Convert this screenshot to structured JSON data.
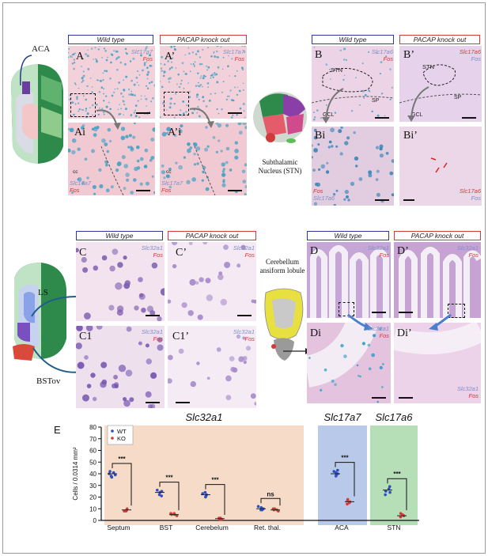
{
  "figure": {
    "top": {
      "wt_header": "Wild type",
      "ko_header": "PACAP knock out",
      "region_aca": "ACA",
      "panels": [
        {
          "label": "A",
          "gene1": "Slc17a7",
          "gene2": "Fos"
        },
        {
          "label": "A’",
          "gene1": "Slc17a7",
          "gene2": "Fos"
        },
        {
          "label": "Ai",
          "gene1": "Slc17a7",
          "gene2": "Fos",
          "tag": "cc"
        },
        {
          "label": "A’i",
          "gene1": "Slc17a7",
          "gene2": "Fos",
          "tag": "cc"
        }
      ],
      "wt_header_b": "Wild type",
      "ko_header_b": "PACAP knock out",
      "stn_caption": "Subthalamic Nucleus (STN)",
      "panels_b": [
        {
          "label": "B",
          "gene1": "Slc17a6",
          "gene2": "Fos",
          "tags": [
            "STN",
            "GCL",
            "SP"
          ]
        },
        {
          "label": "B’",
          "gene1": "Slc17a6",
          "gene2": "Fos",
          "tags": [
            "STN",
            "GCL",
            "SP"
          ]
        },
        {
          "label": "Bi",
          "gene1": "Fos",
          "gene2": "Slc17a6"
        },
        {
          "label": "Bi’",
          "gene1": "Slc17a6",
          "gene2": "Fos"
        }
      ]
    },
    "middle": {
      "wt_header": "Wild type",
      "ko_header": "PACAP knock out",
      "region_ls": "LS",
      "region_bstov": "BSTov",
      "panels": [
        {
          "label": "C",
          "gene1": "Slc32a1",
          "gene2": "Fos"
        },
        {
          "label": "C’",
          "gene1": "Slc32a1",
          "gene2": "Fos"
        },
        {
          "label": "C1",
          "gene1": "Slc32a1",
          "gene2": "Fos"
        },
        {
          "label": "C1’",
          "gene1": "Slc32a1",
          "gene2": "Fos"
        }
      ],
      "cerebellum_caption": "Cerebellum ansiform lobule",
      "wt_header_d": "Wild type",
      "ko_header_d": "PACAP knock out",
      "panels_d": [
        {
          "label": "D",
          "gene1": "Slc32a1",
          "gene2": "Fos"
        },
        {
          "label": "D’",
          "gene1": "Slc32a1",
          "gene2": "Fos"
        },
        {
          "label": "Di",
          "gene1": "Slc32a1",
          "gene2": "Fos"
        },
        {
          "label": "Di’",
          "gene1": "Slc32a1",
          "gene2": "Fos"
        }
      ]
    },
    "panel_e_label": "E"
  },
  "chart_data": {
    "type": "scatter",
    "ylabel": "Cells / 0.0314 mm²",
    "ylim": [
      0,
      80
    ],
    "yticks": [
      0,
      10,
      20,
      30,
      40,
      50,
      60,
      70,
      80
    ],
    "legend": [
      {
        "name": "WT",
        "color": "#2e4fbf"
      },
      {
        "name": "KO",
        "color": "#d23b3b"
      }
    ],
    "groups": [
      {
        "title": "Slc32a1",
        "bg": "#f6dcc8",
        "categories": [
          {
            "name": "Septum",
            "wt": [
              38,
              40,
              41,
              42,
              39,
              37
            ],
            "ko": [
              8,
              9,
              9,
              10,
              8
            ],
            "wt_mean": 40,
            "ko_mean": 9,
            "sig": "***"
          },
          {
            "name": "BST",
            "wt": [
              22,
              24,
              26,
              21,
              25
            ],
            "ko": [
              5,
              6,
              5,
              4,
              6
            ],
            "wt_mean": 24,
            "ko_mean": 5,
            "sig": "***"
          },
          {
            "name": "Cerebelum",
            "wt": [
              21,
              23,
              20,
              24,
              22
            ],
            "ko": [
              1,
              2,
              1,
              2,
              1
            ],
            "wt_mean": 22,
            "ko_mean": 1.5,
            "sig": "***"
          },
          {
            "name": "Ret. thal.",
            "wt": [
              9,
              11,
              10,
              12,
              9
            ],
            "ko": [
              8,
              10,
              9,
              9,
              10
            ],
            "wt_mean": 10,
            "ko_mean": 9,
            "sig": "ns"
          }
        ]
      },
      {
        "title": "Slc17a7",
        "bg": "#b9c9ea",
        "categories": [
          {
            "name": "ACA",
            "wt": [
              38,
              40,
              42,
              39,
              41,
              43
            ],
            "ko": [
              14,
              16,
              17,
              15,
              18
            ],
            "wt_mean": 40,
            "ko_mean": 16,
            "sig": "***"
          }
        ]
      },
      {
        "title": "Slc17a6",
        "bg": "#b6dfb8",
        "categories": [
          {
            "name": "STN",
            "wt": [
              24,
              27,
              29,
              22,
              25
            ],
            "ko": [
              3,
              4,
              5,
              4,
              6
            ],
            "wt_mean": 26,
            "ko_mean": 4,
            "sig": "***"
          }
        ]
      }
    ]
  }
}
